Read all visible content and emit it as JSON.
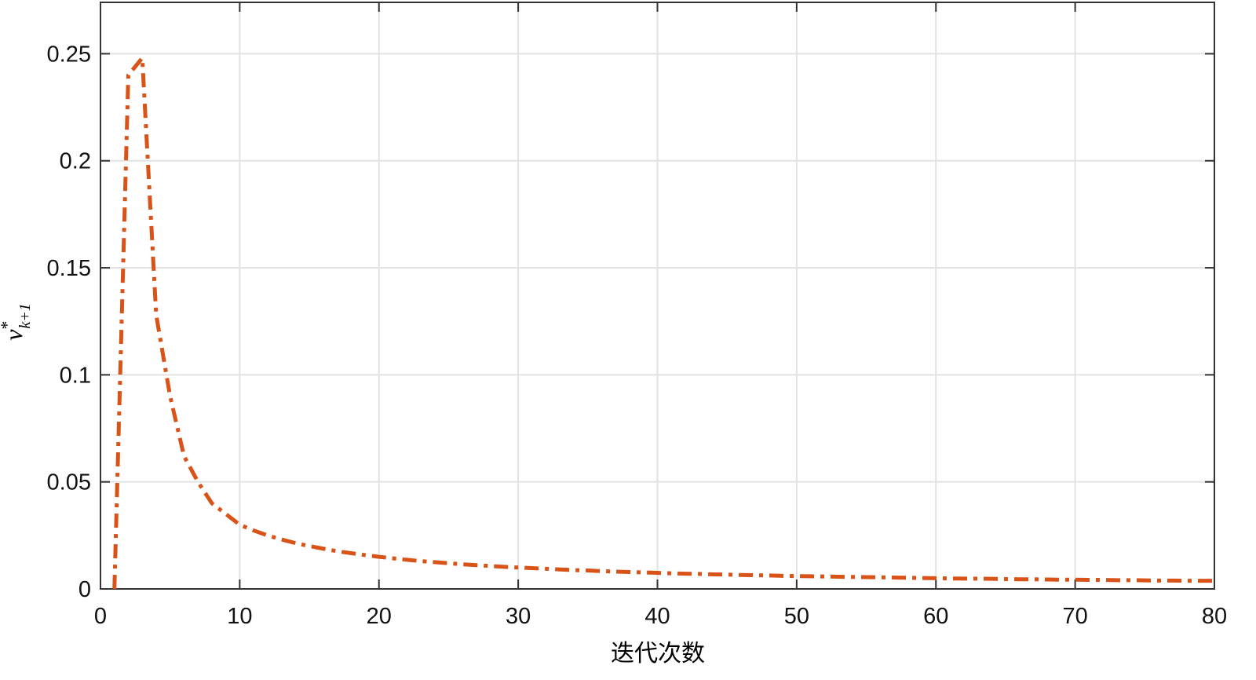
{
  "chart_data": {
    "type": "line",
    "xlabel": "迭代次数",
    "ylabel": {
      "base": "v",
      "sup": "*",
      "sub": "k+1"
    },
    "x": [
      1,
      2,
      3,
      4,
      5,
      6,
      7,
      8,
      9,
      10,
      11,
      12,
      13,
      14,
      15,
      16,
      17,
      18,
      19,
      20,
      21,
      22,
      23,
      24,
      25,
      26,
      27,
      28,
      29,
      30,
      31,
      32,
      33,
      34,
      35,
      36,
      37,
      38,
      39,
      40,
      41,
      42,
      43,
      44,
      45,
      46,
      47,
      48,
      49,
      50,
      51,
      52,
      53,
      54,
      55,
      56,
      57,
      58,
      59,
      60,
      61,
      62,
      63,
      64,
      65,
      66,
      67,
      68,
      69,
      70,
      71,
      72,
      73,
      74,
      75,
      76,
      77,
      78,
      79,
      80
    ],
    "series": [
      {
        "color": "#d95319",
        "line_style": "dash-dot",
        "values": [
          0,
          0.24,
          0.248,
          0.128,
          0.09,
          0.062,
          0.05,
          0.04,
          0.035,
          0.03,
          0.0273,
          0.025,
          0.0231,
          0.0214,
          0.02,
          0.0188,
          0.0176,
          0.0167,
          0.0158,
          0.015,
          0.0143,
          0.0136,
          0.013,
          0.0125,
          0.012,
          0.0115,
          0.0111,
          0.0107,
          0.0103,
          0.01,
          0.0097,
          0.0094,
          0.0091,
          0.0088,
          0.0086,
          0.0083,
          0.0081,
          0.0079,
          0.0077,
          0.0075,
          0.0073,
          0.0071,
          0.007,
          0.0068,
          0.0067,
          0.0065,
          0.0064,
          0.0063,
          0.0061,
          0.006,
          0.0059,
          0.0058,
          0.0057,
          0.0056,
          0.0055,
          0.0054,
          0.0053,
          0.0052,
          0.0051,
          0.005,
          0.0049,
          0.0048,
          0.0048,
          0.0047,
          0.0046,
          0.0045,
          0.0045,
          0.0044,
          0.0043,
          0.0043,
          0.0042,
          0.0042,
          0.0041,
          0.0041,
          0.004,
          0.0039,
          0.0039,
          0.0038,
          0.0038,
          0.0038
        ]
      }
    ],
    "xlim": [
      0,
      80
    ],
    "xticks": [
      0,
      10,
      20,
      30,
      40,
      50,
      60,
      70,
      80
    ],
    "ylim": [
      0,
      0.274
    ],
    "yticks": [
      0,
      0.05,
      0.1,
      0.15,
      0.2,
      0.25
    ],
    "grid": true
  }
}
